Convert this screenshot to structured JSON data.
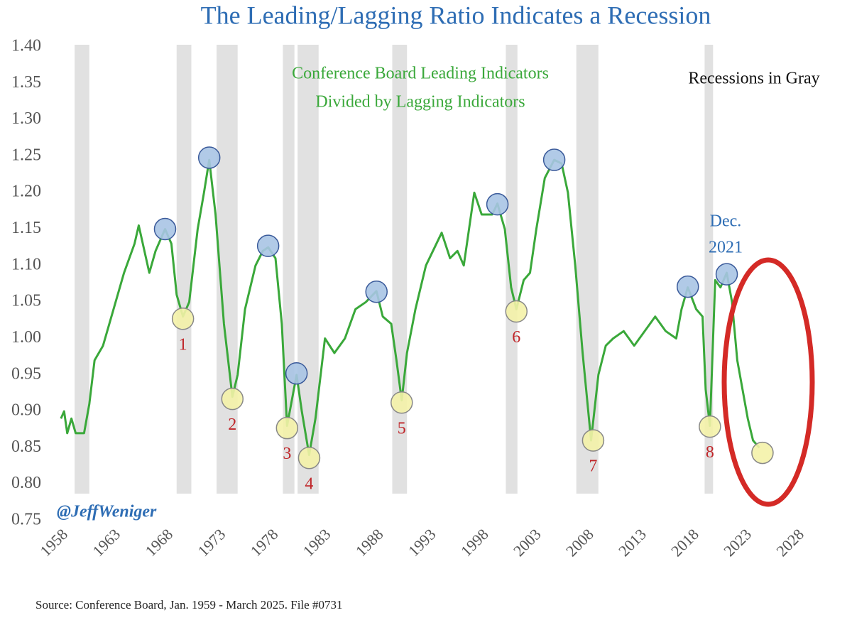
{
  "chart_data": {
    "type": "line",
    "title": "The Leading/Lagging Ratio Indicates a Recession",
    "subtitle": [
      "Conference Board Leading Indicators",
      "Divided by Lagging Indicators"
    ],
    "annotations": {
      "recession_note": "Recessions in Gray",
      "dec_label": [
        "Dec.",
        "2021"
      ],
      "handle": "@JeffWeniger",
      "source": "Source: Conference Board, Jan. 1959 - March 2025. File #0731"
    },
    "xlim": [
      1958,
      2028
    ],
    "xticks": [
      1958,
      1963,
      1968,
      1973,
      1978,
      1983,
      1988,
      1993,
      1998,
      2003,
      2008,
      2013,
      2018,
      2023,
      2028
    ],
    "ylim": [
      0.75,
      1.4
    ],
    "yticks": [
      0.75,
      {
        "value": 0.8,
        "label": "0.80"
      },
      0.85,
      {
        "value": 0.9,
        "label": "0.90"
      },
      0.95,
      {
        "value": 1.0,
        "label": "1.00"
      },
      1.05,
      {
        "value": 1.1,
        "label": "1.10"
      },
      1.15,
      {
        "value": 1.2,
        "label": "1.20"
      },
      1.25,
      {
        "value": 1.3,
        "label": "1.30"
      },
      1.35,
      {
        "value": 1.4,
        "label": "1.40"
      }
    ],
    "grid": false,
    "recession_color": "#e1e1e1",
    "recessions": [
      [
        1960.3,
        1961.7
      ],
      [
        1970.0,
        1971.4
      ],
      [
        1973.8,
        1975.8
      ],
      [
        1980.1,
        1981.2
      ],
      [
        1981.5,
        1983.5
      ],
      [
        1990.5,
        1991.9
      ],
      [
        2001.3,
        2002.4
      ],
      [
        2008.0,
        2010.1
      ],
      [
        2020.2,
        2021.0
      ]
    ],
    "x": [
      1959.0,
      1959.3,
      1959.6,
      1960.0,
      1960.4,
      1961.2,
      1961.7,
      1962.2,
      1963.0,
      1964.0,
      1965.0,
      1966.0,
      1966.4,
      1967.4,
      1968.0,
      1968.9,
      1969.5,
      1970.0,
      1970.6,
      1971.2,
      1972.0,
      1972.6,
      1973.1,
      1973.7,
      1974.5,
      1975.3,
      1975.8,
      1976.5,
      1977.5,
      1978.2,
      1978.7,
      1979.4,
      1980.0,
      1980.5,
      1981.4,
      1981.9,
      1982.6,
      1983.2,
      1984.1,
      1985.0,
      1986.0,
      1987.0,
      1988.0,
      1989.0,
      1989.6,
      1990.4,
      1990.9,
      1991.4,
      1991.9,
      1992.7,
      1993.7,
      1995.2,
      1996.0,
      1996.7,
      1997.3,
      1998.3,
      1999.0,
      2000.0,
      2000.5,
      2001.2,
      2001.8,
      2002.3,
      2003.0,
      2003.6,
      2004.2,
      2005.0,
      2005.9,
      2006.6,
      2007.2,
      2007.9,
      2008.6,
      2009.4,
      2010.1,
      2010.8,
      2011.5,
      2012.5,
      2013.5,
      2014.5,
      2015.5,
      2016.5,
      2017.5,
      2018.0,
      2018.6,
      2019.4,
      2020.0,
      2020.3,
      2020.7,
      2021.2,
      2021.7,
      2022.3,
      2022.8,
      2023.3,
      2023.8,
      2024.3,
      2024.8,
      2025.4
    ],
    "series": [
      {
        "color": "#3aa83a",
        "values": [
          0.89,
          0.9,
          0.87,
          0.89,
          0.87,
          0.87,
          0.91,
          0.97,
          0.99,
          1.04,
          1.09,
          1.13,
          1.155,
          1.09,
          1.12,
          1.15,
          1.13,
          1.06,
          1.03,
          1.05,
          1.15,
          1.2,
          1.245,
          1.17,
          1.02,
          0.92,
          0.95,
          1.04,
          1.1,
          1.12,
          1.125,
          1.11,
          1.02,
          0.88,
          0.95,
          0.9,
          0.84,
          0.89,
          1.0,
          0.98,
          1.0,
          1.04,
          1.05,
          1.065,
          1.03,
          1.02,
          0.97,
          0.915,
          0.98,
          1.04,
          1.1,
          1.145,
          1.11,
          1.12,
          1.1,
          1.2,
          1.17,
          1.17,
          1.185,
          1.15,
          1.07,
          1.04,
          1.08,
          1.09,
          1.15,
          1.22,
          1.245,
          1.24,
          1.2,
          1.1,
          0.98,
          0.86,
          0.95,
          0.99,
          1.0,
          1.01,
          0.99,
          1.01,
          1.03,
          1.01,
          1.0,
          1.04,
          1.07,
          1.04,
          1.03,
          0.93,
          0.88,
          1.08,
          1.07,
          1.09,
          1.05,
          0.97,
          0.93,
          0.89,
          0.86,
          0.85
        ]
      }
    ],
    "peaks": {
      "color": "#a9c4e4",
      "x": [
        1968.9,
        1973.1,
        1978.7,
        1981.4,
        1989.0,
        2000.5,
        2005.9,
        2018.6,
        2022.3
      ],
      "values": [
        1.15,
        1.248,
        1.127,
        0.952,
        1.064,
        1.184,
        1.245,
        1.071,
        1.088
      ]
    },
    "troughs": {
      "color": "#f4f2a8",
      "label_color": "#c0262a",
      "x": [
        1970.6,
        1975.3,
        1980.5,
        1982.6,
        1991.4,
        2002.3,
        2009.6,
        2020.7,
        2025.7
      ],
      "values": [
        1.027,
        0.917,
        0.877,
        0.836,
        0.912,
        1.037,
        0.86,
        0.879,
        0.843
      ],
      "labels": [
        "1",
        "2",
        "3",
        "4",
        "5",
        "6",
        "7",
        "8",
        null
      ]
    }
  }
}
